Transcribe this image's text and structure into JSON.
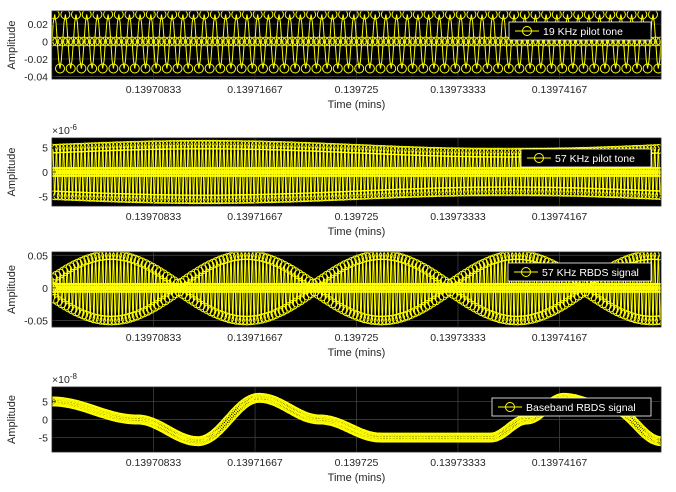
{
  "chart_data": [
    {
      "type": "line",
      "xlabel": "Time (mins)",
      "ylabel": "Amplitude",
      "x_tick_labels": [
        "0.13970833",
        "0.13971667",
        "0.139725",
        "0.13973333",
        "0.13974167"
      ],
      "x_ticks": [
        0.13970833,
        0.13971667,
        0.139725,
        0.13973333,
        0.13974167
      ],
      "xlim": [
        0.1397,
        0.13975
      ],
      "ylim": [
        -0.043,
        0.035
      ],
      "y_ticks": [
        -0.04,
        -0.02,
        0,
        0.02
      ],
      "y_tick_labels": [
        "-0.04",
        "-0.02",
        "0",
        "0.02"
      ],
      "y_exponent": "",
      "grid": true,
      "legend_position": "top-right",
      "series": [
        {
          "name": "19 KHz pilot tone",
          "color": "#ffff00",
          "marker": "circle",
          "signal": {
            "kind": "sine",
            "amplitude": 0.031,
            "cycles": 57
          }
        }
      ]
    },
    {
      "type": "line",
      "xlabel": "Time (mins)",
      "ylabel": "Amplitude",
      "x_tick_labels": [
        "0.13970833",
        "0.13971667",
        "0.139725",
        "0.13973333",
        "0.13974167"
      ],
      "x_ticks": [
        0.13970833,
        0.13971667,
        0.139725,
        0.13973333,
        0.13974167
      ],
      "xlim": [
        0.1397,
        0.13975
      ],
      "ylim": [
        -7,
        7
      ],
      "y_ticks": [
        -5,
        0,
        5
      ],
      "y_tick_labels": [
        "-5",
        "0",
        "5"
      ],
      "y_exponent": "-6",
      "grid": true,
      "legend_position": "top-right",
      "series": [
        {
          "name": "57 KHz pilot tone",
          "color": "#ffff00",
          "marker": "circle",
          "signal": {
            "kind": "sine",
            "amplitude": 5.6,
            "cycles": 171
          }
        }
      ]
    },
    {
      "type": "line",
      "xlabel": "Time (mins)",
      "ylabel": "Amplitude",
      "x_tick_labels": [
        "0.13970833",
        "0.13971667",
        "0.139725",
        "0.13973333",
        "0.13974167"
      ],
      "x_ticks": [
        0.13970833,
        0.13971667,
        0.139725,
        0.13973333,
        0.13974167
      ],
      "xlim": [
        0.1397,
        0.13975
      ],
      "ylim": [
        -0.06,
        0.055
      ],
      "y_ticks": [
        -0.05,
        0,
        0.05
      ],
      "y_tick_labels": [
        "-0.05",
        "0",
        "0.05"
      ],
      "y_exponent": "",
      "grid": true,
      "legend_position": "top-right",
      "series": [
        {
          "name": "57 KHz RBDS signal",
          "color": "#ffff00",
          "marker": "circle",
          "signal": {
            "kind": "modulated",
            "amplitude": 0.05,
            "cycles": 171,
            "envelope_cycles": 2.25
          }
        }
      ]
    },
    {
      "type": "line",
      "xlabel": "Time (mins)",
      "ylabel": "Amplitude",
      "x_tick_labels": [
        "0.13970833",
        "0.13971667",
        "0.139725",
        "0.13973333",
        "0.13974167"
      ],
      "x_ticks": [
        0.13970833,
        0.13971667,
        0.139725,
        0.13973333,
        0.13974167
      ],
      "xlim": [
        0.1397,
        0.13975
      ],
      "ylim": [
        -9,
        9
      ],
      "y_ticks": [
        -5,
        0,
        5
      ],
      "y_tick_labels": [
        "-5",
        "0",
        "5"
      ],
      "y_exponent": "-8",
      "grid": true,
      "legend_position": "top-right",
      "series": [
        {
          "name": "Baseband RBDS signal",
          "color": "#ffff00",
          "marker": "circle",
          "signal": {
            "kind": "baseband",
            "x": [
              0.1397,
              0.139707,
              0.139712,
              0.139717,
              0.139722,
              0.139727,
              0.139732,
              0.139736,
              0.139739,
              0.139742,
              0.139746,
              0.13975
            ],
            "y": [
              5,
              0,
              -6,
              6,
              0,
              -5,
              -5,
              -5,
              0,
              6,
              3,
              -6
            ]
          }
        }
      ]
    }
  ]
}
